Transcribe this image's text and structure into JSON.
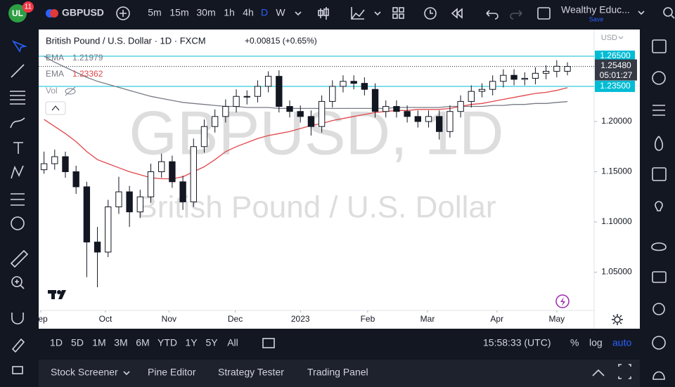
{
  "top_bar": {
    "badge": "11",
    "symbol": "GBPUSD",
    "intervals": [
      "5m",
      "15m",
      "30m",
      "1h",
      "4h",
      "D",
      "W"
    ],
    "layout_name": "Wealthy Educ...",
    "save": "Save"
  },
  "legend": {
    "title": "British Pound / U.S. Dollar · 1D · FXCM",
    "change": "+0.00815 (+0.65%)",
    "volume": "Vol",
    "currency": "USD"
  },
  "watermark": {
    "line1": "GBPUSD, 1D",
    "line2": "British Pound / U.S. Dollar"
  },
  "range_bar": {
    "ranges": [
      "1D",
      "5D",
      "1M",
      "3M",
      "6M",
      "YTD",
      "1Y",
      "5Y",
      "All"
    ],
    "clock": "15:58:33 (UTC)",
    "percent": "%",
    "log": "log",
    "auto": "auto"
  },
  "footer": {
    "tabs": [
      "Stock Screener",
      "Pine Editor",
      "Strategy Tester",
      "Trading Panel"
    ]
  },
  "chart_data": {
    "type": "candlestick",
    "up_color": "#ffffff",
    "down_color": "#131722",
    "ylim": [
      1.0119,
      1.2916
    ],
    "xlim": [
      0,
      52
    ],
    "yticks": [
      {
        "value": 1.2,
        "label": "1.20000"
      },
      {
        "value": 1.15,
        "label": "1.15000"
      },
      {
        "value": 1.1,
        "label": "1.10000"
      },
      {
        "value": 1.05,
        "label": "1.05000"
      }
    ],
    "xticks": [
      {
        "value": 0.2,
        "label": "ep"
      },
      {
        "value": 6.25,
        "label": "Oct"
      },
      {
        "value": 12.2,
        "label": "Nov"
      },
      {
        "value": 18.4,
        "label": "Dec"
      },
      {
        "value": 24.5,
        "label": "2023"
      },
      {
        "value": 30.8,
        "label": "Feb"
      },
      {
        "value": 36.4,
        "label": "Mar"
      },
      {
        "value": 42.9,
        "label": "Apr"
      },
      {
        "value": 48.5,
        "label": "May"
      }
    ],
    "candles": [
      [
        1.152,
        1.17,
        1.148,
        1.158
      ],
      [
        1.158,
        1.172,
        1.152,
        1.165
      ],
      [
        1.165,
        1.17,
        1.144,
        1.15
      ],
      [
        1.15,
        1.156,
        1.128,
        1.135
      ],
      [
        1.135,
        1.14,
        1.045,
        1.08
      ],
      [
        1.08,
        1.095,
        1.035,
        1.07
      ],
      [
        1.07,
        1.122,
        1.065,
        1.115
      ],
      [
        1.115,
        1.145,
        1.108,
        1.13
      ],
      [
        1.13,
        1.136,
        1.095,
        1.11
      ],
      [
        1.11,
        1.132,
        1.104,
        1.125
      ],
      [
        1.125,
        1.158,
        1.119,
        1.15
      ],
      [
        1.15,
        1.168,
        1.144,
        1.16
      ],
      [
        1.16,
        1.166,
        1.134,
        1.14
      ],
      [
        1.14,
        1.146,
        1.112,
        1.12
      ],
      [
        1.12,
        1.183,
        1.115,
        1.175
      ],
      [
        1.175,
        1.202,
        1.169,
        1.195
      ],
      [
        1.195,
        1.212,
        1.189,
        1.205
      ],
      [
        1.205,
        1.222,
        1.199,
        1.215
      ],
      [
        1.215,
        1.232,
        1.209,
        1.225
      ],
      [
        1.225,
        1.231,
        1.217,
        1.225
      ],
      [
        1.225,
        1.241,
        1.219,
        1.235
      ],
      [
        1.235,
        1.25,
        1.229,
        1.245
      ],
      [
        1.245,
        1.251,
        1.209,
        1.215
      ],
      [
        1.215,
        1.221,
        1.204,
        1.21
      ],
      [
        1.21,
        1.216,
        1.199,
        1.205
      ],
      [
        1.205,
        1.211,
        1.186,
        1.195
      ],
      [
        1.195,
        1.226,
        1.189,
        1.22
      ],
      [
        1.22,
        1.241,
        1.214,
        1.235
      ],
      [
        1.235,
        1.246,
        1.229,
        1.24
      ],
      [
        1.24,
        1.246,
        1.232,
        1.238
      ],
      [
        1.238,
        1.244,
        1.226,
        1.232
      ],
      [
        1.232,
        1.238,
        1.204,
        1.21
      ],
      [
        1.21,
        1.221,
        1.204,
        1.215
      ],
      [
        1.215,
        1.221,
        1.204,
        1.21
      ],
      [
        1.21,
        1.216,
        1.199,
        1.205
      ],
      [
        1.205,
        1.211,
        1.194,
        1.2
      ],
      [
        1.2,
        1.211,
        1.194,
        1.205
      ],
      [
        1.205,
        1.211,
        1.182,
        1.19
      ],
      [
        1.19,
        1.216,
        1.184,
        1.21
      ],
      [
        1.21,
        1.226,
        1.204,
        1.22
      ],
      [
        1.22,
        1.236,
        1.214,
        1.23
      ],
      [
        1.23,
        1.238,
        1.224,
        1.232
      ],
      [
        1.232,
        1.246,
        1.226,
        1.24
      ],
      [
        1.24,
        1.252,
        1.234,
        1.246
      ],
      [
        1.246,
        1.252,
        1.236,
        1.242
      ],
      [
        1.242,
        1.249,
        1.236,
        1.243
      ],
      [
        1.243,
        1.254,
        1.237,
        1.248
      ],
      [
        1.248,
        1.256,
        1.242,
        1.25
      ],
      [
        1.25,
        1.261,
        1.244,
        1.255
      ],
      [
        1.25,
        1.259,
        1.246,
        1.2548
      ]
    ],
    "series": [
      {
        "name": "EMA",
        "color": "#787b86",
        "last_value": 1.21979,
        "values": [
          1.265,
          1.259,
          1.254,
          1.249,
          1.244,
          1.24,
          1.237,
          1.234,
          1.231,
          1.228,
          1.225,
          1.223,
          1.221,
          1.219,
          1.218,
          1.217,
          1.216,
          1.215,
          1.215,
          1.214,
          1.214,
          1.214,
          1.213,
          1.213,
          1.213,
          1.213,
          1.213,
          1.213,
          1.213,
          1.213,
          1.213,
          1.213,
          1.213,
          1.214,
          1.214,
          1.214,
          1.214,
          1.214,
          1.215,
          1.215,
          1.215,
          1.215,
          1.216,
          1.216,
          1.217,
          1.217,
          1.218,
          1.218,
          1.219,
          1.21979
        ]
      },
      {
        "name": "EMA",
        "color": "#e0474c",
        "last_value": 1.23362,
        "values": [
          1.202,
          1.195,
          1.188,
          1.18,
          1.17,
          1.162,
          1.158,
          1.154,
          1.15,
          1.147,
          1.144,
          1.143,
          1.143,
          1.145,
          1.15,
          1.155,
          1.162,
          1.17,
          1.175,
          1.179,
          1.183,
          1.186,
          1.188,
          1.19,
          1.193,
          1.196,
          1.198,
          1.201,
          1.203,
          1.205,
          1.207,
          1.209,
          1.21,
          1.211,
          1.211,
          1.212,
          1.212,
          1.212,
          1.213,
          1.215,
          1.217,
          1.218,
          1.22,
          1.222,
          1.224,
          1.226,
          1.228,
          1.229,
          1.231,
          1.23362
        ]
      }
    ],
    "price_lines": [
      {
        "value": 1.265,
        "label": "1.26500",
        "color": "#00bcd4"
      },
      {
        "value": 1.235,
        "label": "1.23500",
        "color": "#00bcd4"
      }
    ],
    "last_price": {
      "value": 1.2548,
      "label": "1.25480",
      "countdown": "05:01:27"
    }
  }
}
